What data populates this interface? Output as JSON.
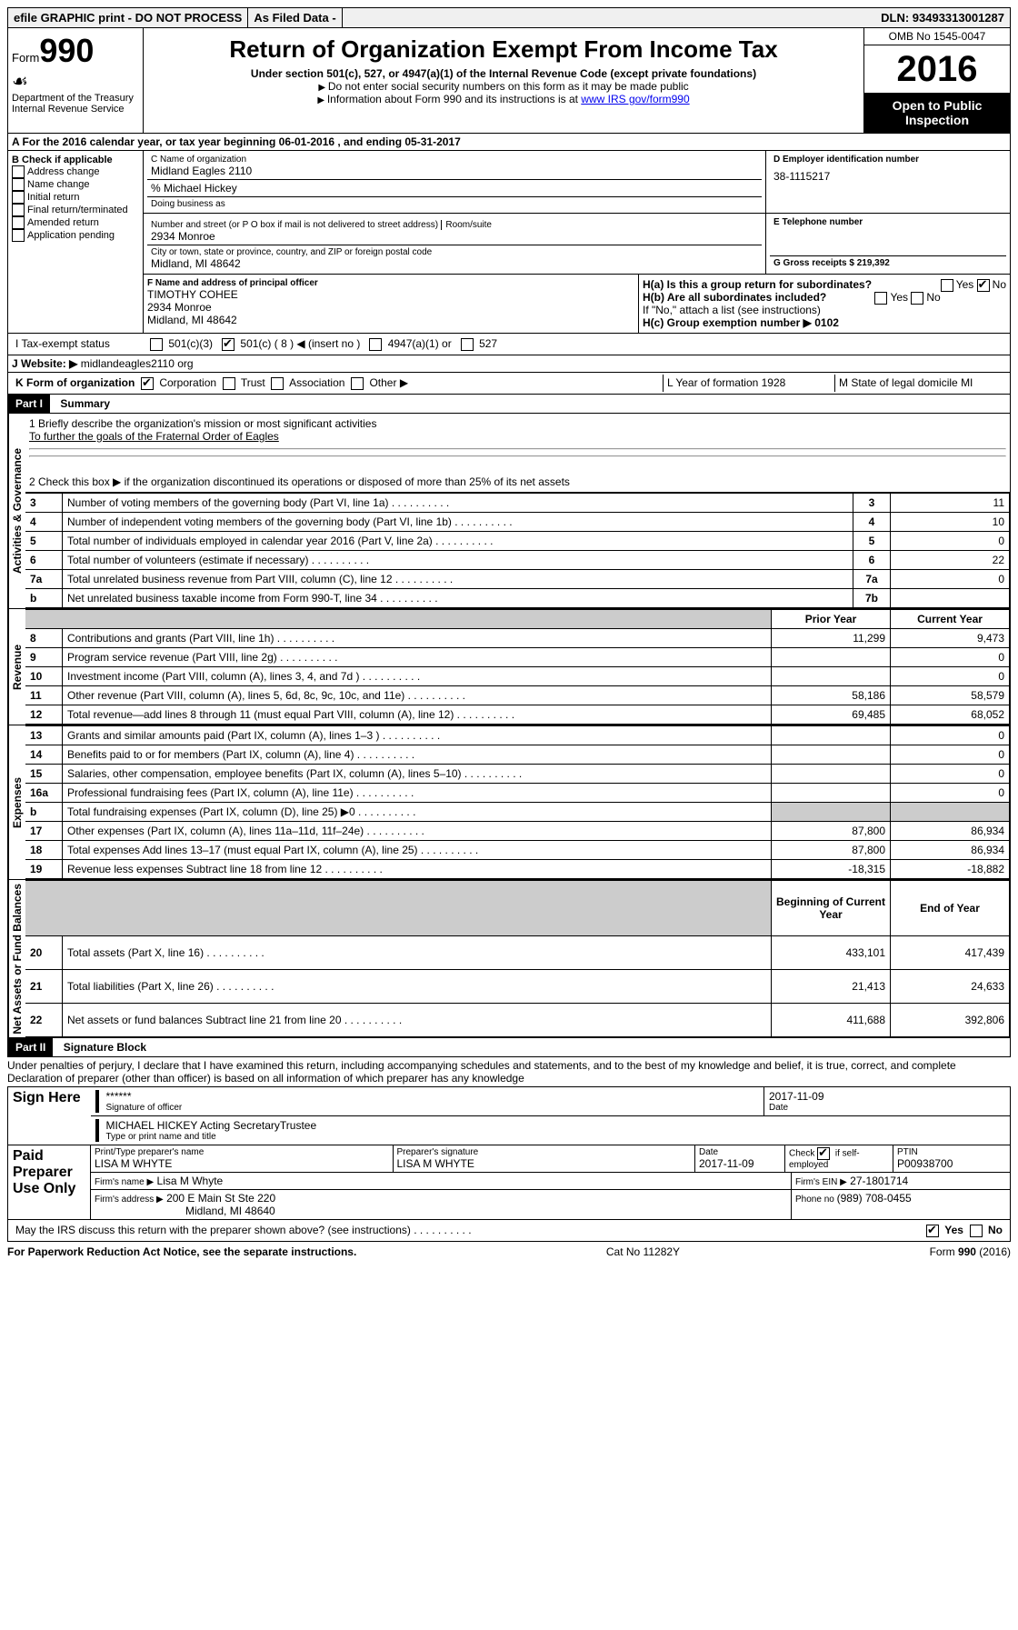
{
  "topbar": {
    "efile": "efile GRAPHIC print - DO NOT PROCESS",
    "asfiled": "As Filed Data -",
    "dln": "DLN: 93493313001287"
  },
  "header": {
    "form_label": "Form",
    "form_number": "990",
    "dept": "Department of the Treasury",
    "irs": "Internal Revenue Service",
    "title": "Return of Organization Exempt From Income Tax",
    "subtitle": "Under section 501(c), 527, or 4947(a)(1) of the Internal Revenue Code (except private foundations)",
    "note1": "Do not enter social security numbers on this form as it may be made public",
    "note2": "Information about Form 990 and its instructions is at ",
    "note2_link": "www IRS gov/form990",
    "omb": "OMB No  1545-0047",
    "year": "2016",
    "open": "Open to Public Inspection"
  },
  "line_a": "A  For the 2016 calendar year, or tax year beginning 06-01-2016   , and ending 05-31-2017",
  "colB": {
    "title": "B Check if applicable",
    "items": [
      "Address change",
      "Name change",
      "Initial return",
      "Final return/terminated",
      "Amended return",
      "Application pending"
    ]
  },
  "colC": {
    "name_label": "C Name of organization",
    "name": "Midland Eagles 2110",
    "care_of": "% Michael Hickey",
    "dba_label": "Doing business as",
    "addr_label": "Number and street (or P O  box if mail is not delivered to street address)",
    "room_label": "Room/suite",
    "addr": "2934 Monroe",
    "city_label": "City or town, state or province, country, and ZIP or foreign postal code",
    "city": "Midland, MI  48642",
    "f_label": "F  Name and address of principal officer",
    "f_name": "TIMOTHY COHEE",
    "f_addr1": "2934 Monroe",
    "f_addr2": "Midland, MI  48642"
  },
  "colD": {
    "d_label": "D Employer identification number",
    "ein": "38-1115217",
    "e_label": "E Telephone number",
    "g_label": "G Gross receipts $ 219,392",
    "ha": "H(a)  Is this a group return for subordinates?",
    "hb": "H(b)  Are all subordinates included?",
    "hb_note": "If \"No,\" attach a list  (see instructions)",
    "hc": "H(c)  Group exemption number ▶  0102"
  },
  "line_i": {
    "label": "I   Tax-exempt status",
    "opts": [
      "501(c)(3)",
      "501(c) ( 8 ) ◀ (insert no )",
      "4947(a)(1) or",
      "527"
    ]
  },
  "line_j": {
    "label": "J  Website: ▶",
    "value": "midlandeagles2110 org"
  },
  "line_k": {
    "label": "K Form of organization",
    "opts": [
      "Corporation",
      "Trust",
      "Association",
      "Other ▶"
    ],
    "l_label": "L Year of formation  1928",
    "m_label": "M State of legal domicile  MI"
  },
  "part1": {
    "header": "Part I",
    "title": "Summary",
    "line1": "1 Briefly describe the organization's mission or most significant activities",
    "mission": "To further the goals of the Fraternal Order of Eagles",
    "line2": "2  Check this box ▶        if the organization discontinued its operations or disposed of more than 25% of its net assets",
    "sections": {
      "governance": "Activities & Governance",
      "revenue": "Revenue",
      "expenses": "Expenses",
      "net": "Net Assets or Fund Balances"
    },
    "col_headers": {
      "prior": "Prior Year",
      "current": "Current Year",
      "boy": "Beginning of Current Year",
      "eoy": "End of Year"
    },
    "rows_gov": [
      {
        "n": "3",
        "d": "Number of voting members of the governing body (Part VI, line 1a)",
        "r": "3",
        "v": "11"
      },
      {
        "n": "4",
        "d": "Number of independent voting members of the governing body (Part VI, line 1b)",
        "r": "4",
        "v": "10"
      },
      {
        "n": "5",
        "d": "Total number of individuals employed in calendar year 2016 (Part V, line 2a)",
        "r": "5",
        "v": "0"
      },
      {
        "n": "6",
        "d": "Total number of volunteers (estimate if necessary)",
        "r": "6",
        "v": "22"
      },
      {
        "n": "7a",
        "d": "Total unrelated business revenue from Part VIII, column (C), line 12",
        "r": "7a",
        "v": "0"
      },
      {
        "n": "b",
        "d": "Net unrelated business taxable income from Form 990-T, line 34",
        "r": "7b",
        "v": ""
      }
    ],
    "rows_rev": [
      {
        "n": "8",
        "d": "Contributions and grants (Part VIII, line 1h)",
        "p": "11,299",
        "c": "9,473"
      },
      {
        "n": "9",
        "d": "Program service revenue (Part VIII, line 2g)",
        "p": "",
        "c": "0"
      },
      {
        "n": "10",
        "d": "Investment income (Part VIII, column (A), lines 3, 4, and 7d )",
        "p": "",
        "c": "0"
      },
      {
        "n": "11",
        "d": "Other revenue (Part VIII, column (A), lines 5, 6d, 8c, 9c, 10c, and 11e)",
        "p": "58,186",
        "c": "58,579"
      },
      {
        "n": "12",
        "d": "Total revenue—add lines 8 through 11 (must equal Part VIII, column (A), line 12)",
        "p": "69,485",
        "c": "68,052"
      }
    ],
    "rows_exp": [
      {
        "n": "13",
        "d": "Grants and similar amounts paid (Part IX, column (A), lines 1–3 )",
        "p": "",
        "c": "0"
      },
      {
        "n": "14",
        "d": "Benefits paid to or for members (Part IX, column (A), line 4)",
        "p": "",
        "c": "0"
      },
      {
        "n": "15",
        "d": "Salaries, other compensation, employee benefits (Part IX, column (A), lines 5–10)",
        "p": "",
        "c": "0"
      },
      {
        "n": "16a",
        "d": "Professional fundraising fees (Part IX, column (A), line 11e)",
        "p": "",
        "c": "0"
      },
      {
        "n": "b",
        "d": "Total fundraising expenses (Part IX, column (D), line 25) ▶0",
        "p": "grey",
        "c": "grey"
      },
      {
        "n": "17",
        "d": "Other expenses (Part IX, column (A), lines 11a–11d, 11f–24e)",
        "p": "87,800",
        "c": "86,934"
      },
      {
        "n": "18",
        "d": "Total expenses  Add lines 13–17 (must equal Part IX, column (A), line 25)",
        "p": "87,800",
        "c": "86,934"
      },
      {
        "n": "19",
        "d": "Revenue less expenses  Subtract line 18 from line 12",
        "p": "-18,315",
        "c": "-18,882"
      }
    ],
    "rows_net": [
      {
        "n": "20",
        "d": "Total assets (Part X, line 16)",
        "p": "433,101",
        "c": "417,439"
      },
      {
        "n": "21",
        "d": "Total liabilities (Part X, line 26)",
        "p": "21,413",
        "c": "24,633"
      },
      {
        "n": "22",
        "d": "Net assets or fund balances  Subtract line 21 from line 20",
        "p": "411,688",
        "c": "392,806"
      }
    ]
  },
  "part2": {
    "header": "Part II",
    "title": "Signature Block",
    "perjury": "Under penalties of perjury, I declare that I have examined this return, including accompanying schedules and statements, and to the best of my knowledge and belief, it is true, correct, and complete  Declaration of preparer (other than officer) is based on all information of which preparer has any knowledge",
    "sign_here": "Sign Here",
    "sig_stars": "******",
    "sig_label": "Signature of officer",
    "sig_date": "2017-11-09",
    "date_label": "Date",
    "name": "MICHAEL HICKEY Acting SecretaryTrustee",
    "name_label": "Type or print name and title",
    "paid": "Paid Preparer Use Only",
    "prep_name_label": "Print/Type preparer's name",
    "prep_name": "LISA M WHYTE",
    "prep_sig_label": "Preparer's signature",
    "prep_sig": "LISA M WHYTE",
    "prep_date_label": "Date",
    "prep_date": "2017-11-09",
    "check_label": "Check         if self-employed",
    "ptin_label": "PTIN",
    "ptin": "P00938700",
    "firm_name_label": "Firm's name    ▶",
    "firm_name": "Lisa M Whyte",
    "firm_ein_label": "Firm's EIN ▶",
    "firm_ein": "27-1801714",
    "firm_addr_label": "Firm's address ▶",
    "firm_addr": "200 E Main St Ste 220",
    "firm_city": "Midland, MI  48640",
    "phone_label": "Phone no ",
    "phone": "(989) 708-0455",
    "discuss": "May the IRS discuss this return with the preparer shown above? (see instructions)",
    "yes": "Yes",
    "no": "No"
  },
  "footer": {
    "left": "For Paperwork Reduction Act Notice, see the separate instructions.",
    "mid": "Cat  No  11282Y",
    "right": "Form 990 (2016)"
  }
}
